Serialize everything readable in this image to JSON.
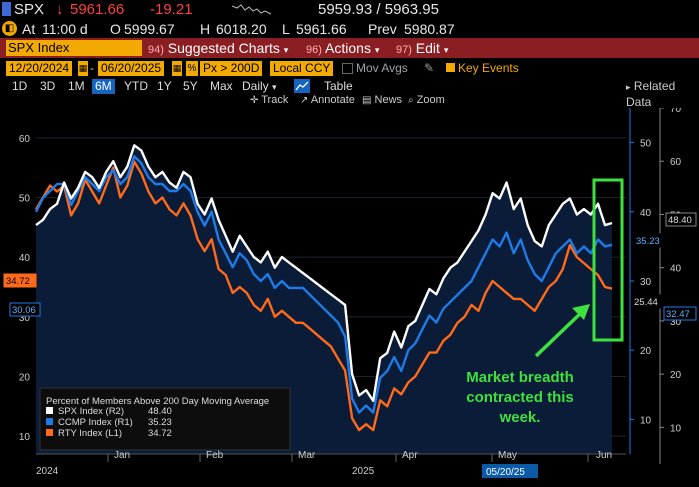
{
  "quote": {
    "ticker": "SPX",
    "last": "5961.66",
    "change": "-19.21",
    "bid_ask": "5959.93 / 5963.95",
    "at_label": "At",
    "time": "11:00 d",
    "open_label": "O",
    "open": "5999.67",
    "high_label": "H",
    "high": "6018.20",
    "low_label": "L",
    "low": "5961.66",
    "prev_label": "Prev",
    "prev": "5980.87"
  },
  "menu": {
    "security": "SPX Index",
    "items": [
      {
        "num": "94)",
        "label": "Suggested Charts"
      },
      {
        "num": "96)",
        "label": "Actions"
      },
      {
        "num": "97)",
        "label": "Edit"
      }
    ]
  },
  "controls": {
    "start_date": "12/20/2024",
    "end_date": "06/20/2025",
    "field": "Px > 200D",
    "currency": "Local CCY",
    "mov_avgs": "Mov Avgs",
    "key_events": "Key Events",
    "periods": [
      "1D",
      "3D",
      "1M",
      "6M",
      "YTD",
      "1Y",
      "5Y",
      "Max"
    ],
    "selected_period": "6M",
    "frequency": "Daily",
    "view": "Table",
    "tools": [
      "Track",
      "Annotate",
      "News",
      "Zoom"
    ],
    "related_data": "Related Data"
  },
  "colors": {
    "spx": "#ffffff",
    "ccmp": "#1e7be8",
    "rty": "#ff6a1a",
    "annotation": "#3ee13e",
    "background": "#000000",
    "area": "#0c1d3b"
  },
  "chart_data": {
    "type": "line",
    "legend_title": "Percent of Members Above 200 Day Moving Average",
    "legend": [
      {
        "name": "SPX Index (R2)",
        "value": "48.40"
      },
      {
        "name": "CCMP Index (R1)",
        "value": "35.23"
      },
      {
        "name": "RTY Index (L1)",
        "value": "34.72"
      }
    ],
    "x_labels": [
      "2024",
      "Jan",
      "Feb",
      "Mar",
      "2025",
      "Apr",
      "May",
      "Jun"
    ],
    "end_date_label": "05/20/25",
    "axes": {
      "left": {
        "ticks": [
          10,
          20,
          30,
          40,
          50,
          60
        ],
        "range": [
          7,
          65
        ],
        "series": "RTY"
      },
      "r1": {
        "ticks": [
          10,
          20,
          30,
          40,
          50
        ],
        "range": [
          5,
          55
        ],
        "series": "CCMP"
      },
      "r2": {
        "ticks": [
          10,
          20,
          30,
          40,
          50,
          60,
          70
        ],
        "range": [
          5,
          70
        ],
        "series": "SPX"
      }
    },
    "value_labels": {
      "left_rty": "34.72",
      "left_other": "30.06",
      "r1_ccmp": "35.23",
      "r1_other": "25.44",
      "r2_spx": "48.40",
      "r2_other": "32.47"
    },
    "series": [
      {
        "name": "SPX",
        "axis": "r2",
        "values": [
          48,
          49,
          51,
          52,
          56,
          53,
          55,
          58,
          57,
          55,
          58,
          60,
          57,
          59,
          63,
          62,
          59,
          57,
          58,
          56,
          55,
          58,
          57,
          52,
          50,
          53,
          49,
          46,
          43,
          46,
          44,
          42,
          41,
          43,
          40,
          42,
          41,
          40,
          39,
          38,
          37,
          36,
          35,
          34,
          33,
          20,
          16,
          17,
          15,
          23,
          24,
          28,
          25,
          29,
          30,
          33,
          36,
          35,
          38,
          40,
          41,
          43,
          45,
          47,
          50,
          54,
          53,
          56,
          51,
          53,
          48,
          45,
          44,
          48,
          50,
          52,
          53,
          50,
          51,
          50,
          52,
          48,
          48.4
        ]
      },
      {
        "name": "CCMP",
        "axis": "r1",
        "values": [
          40,
          42,
          43,
          44,
          44,
          41,
          43,
          45,
          44,
          43,
          45,
          46,
          44,
          45,
          48,
          47,
          45,
          44,
          44,
          43,
          43,
          44,
          43,
          40,
          38,
          40,
          36,
          34,
          32,
          34,
          33,
          31,
          30,
          31,
          29,
          30,
          29,
          29,
          29,
          28,
          27,
          26,
          25,
          24,
          22,
          13,
          11,
          12,
          11,
          16,
          17,
          19,
          17,
          20,
          21,
          23,
          25,
          24,
          26,
          27,
          28,
          29,
          30,
          32,
          34,
          36,
          35,
          37,
          34,
          36,
          33,
          31,
          30,
          32,
          34,
          35,
          36,
          34,
          35,
          34,
          36,
          35,
          35.23
        ]
      },
      {
        "name": "RTY",
        "axis": "left",
        "values": [
          48,
          50,
          52,
          51,
          52,
          47,
          49,
          53,
          51,
          49,
          52,
          55,
          50,
          52,
          56,
          54,
          51,
          49,
          50,
          48,
          47,
          49,
          47,
          43,
          41,
          43,
          38,
          37,
          34,
          35,
          34,
          32,
          31,
          33,
          30,
          31,
          30,
          29,
          29,
          28,
          27,
          26,
          25,
          23,
          21,
          13,
          11,
          12,
          11,
          16,
          15,
          18,
          17,
          19,
          20,
          22,
          24,
          24,
          26,
          27,
          29,
          30,
          32,
          31,
          34,
          36,
          35,
          34,
          33,
          33,
          32,
          31,
          33,
          35,
          36,
          38,
          42,
          40,
          39,
          38,
          37,
          35,
          34.72
        ]
      }
    ],
    "annotation": "Market breadth contracted this week."
  }
}
